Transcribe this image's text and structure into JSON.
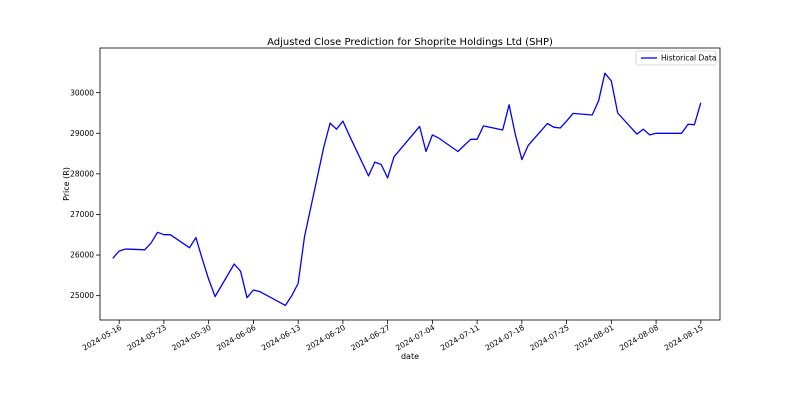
{
  "chart_data": {
    "type": "line",
    "title": "Adjusted Close Prediction for Shoprite Holdings Ltd (SHP)",
    "xlabel": "date",
    "ylabel": "Price (R)",
    "ylim": [
      24400,
      31100
    ],
    "xlim": [
      "2024-05-13",
      "2024-08-18"
    ],
    "yticks": [
      25000,
      26000,
      27000,
      28000,
      29000,
      30000
    ],
    "xticks": [
      "2024-05-16",
      "2024-05-23",
      "2024-05-30",
      "2024-06-06",
      "2024-06-13",
      "2024-06-20",
      "2024-06-27",
      "2024-07-04",
      "2024-07-11",
      "2024-07-18",
      "2024-07-25",
      "2024-08-01",
      "2024-08-08",
      "2024-08-15"
    ],
    "grid": false,
    "legend": "upper-right",
    "line_color": "#0000ff",
    "series": [
      {
        "name": "Historical Data",
        "x": [
          "2024-05-15",
          "2024-05-16",
          "2024-05-17",
          "2024-05-20",
          "2024-05-21",
          "2024-05-22",
          "2024-05-23",
          "2024-05-24",
          "2024-05-27",
          "2024-05-28",
          "2024-05-29",
          "2024-05-30",
          "2024-05-31",
          "2024-06-03",
          "2024-06-04",
          "2024-06-05",
          "2024-06-06",
          "2024-06-07",
          "2024-06-11",
          "2024-06-12",
          "2024-06-13",
          "2024-06-14",
          "2024-06-17",
          "2024-06-18",
          "2024-06-19",
          "2024-06-20",
          "2024-06-21",
          "2024-06-24",
          "2024-06-25",
          "2024-06-26",
          "2024-06-27",
          "2024-06-28",
          "2024-07-01",
          "2024-07-02",
          "2024-07-03",
          "2024-07-04",
          "2024-07-05",
          "2024-07-08",
          "2024-07-09",
          "2024-07-10",
          "2024-07-11",
          "2024-07-12",
          "2024-07-15",
          "2024-07-16",
          "2024-07-17",
          "2024-07-18",
          "2024-07-19",
          "2024-07-22",
          "2024-07-23",
          "2024-07-24",
          "2024-07-25",
          "2024-07-26",
          "2024-07-29",
          "2024-07-30",
          "2024-07-31",
          "2024-08-01",
          "2024-08-02",
          "2024-08-05",
          "2024-08-06",
          "2024-08-07",
          "2024-08-08",
          "2024-08-12",
          "2024-08-13",
          "2024-08-14",
          "2024-08-15"
        ],
        "y": [
          25920,
          26100,
          26150,
          26130,
          26300,
          26560,
          26500,
          26500,
          26180,
          26430,
          25900,
          25400,
          24980,
          25780,
          25600,
          24950,
          25140,
          25100,
          24760,
          25000,
          25300,
          26450,
          28650,
          29250,
          29100,
          29300,
          28950,
          27950,
          28290,
          28230,
          27900,
          28420,
          28980,
          29170,
          28550,
          28960,
          28880,
          28550,
          28700,
          28850,
          28850,
          29180,
          29080,
          29700,
          28950,
          28350,
          28700,
          29240,
          29150,
          29130,
          29300,
          29490,
          29450,
          29800,
          30480,
          30290,
          29500,
          28980,
          29100,
          28960,
          29000,
          29000,
          29220,
          29210,
          29750
        ]
      }
    ]
  }
}
